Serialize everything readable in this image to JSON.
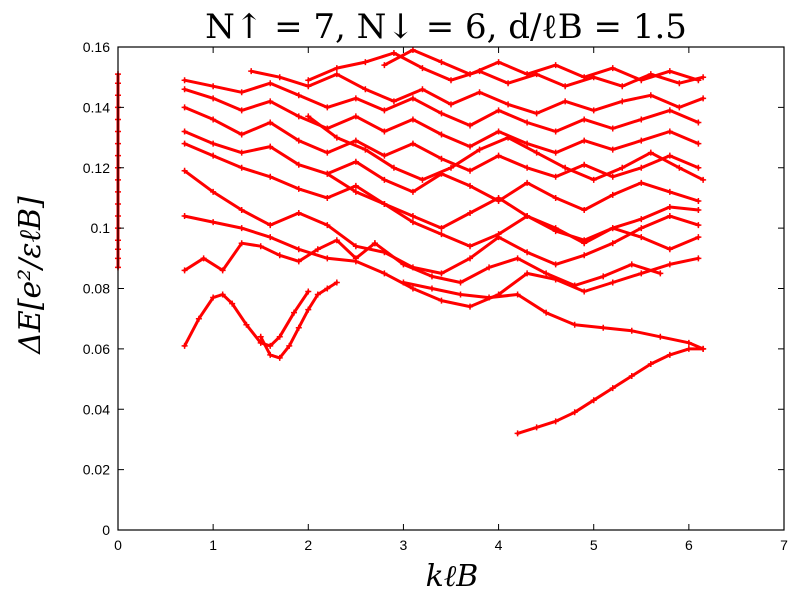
{
  "chart_data": {
    "type": "scatter",
    "title": "N↑ = 7, N↓ = 6, d/ℓB = 1.5",
    "xlabel": "kℓB",
    "ylabel": "ΔE[e²/εℓB]",
    "xlim": [
      0,
      7
    ],
    "ylim": [
      0,
      0.16
    ],
    "x_ticks": [
      "0",
      "1",
      "2",
      "3",
      "4",
      "5",
      "6",
      "7"
    ],
    "y_ticks": [
      "0",
      "0.02",
      "0.04",
      "0.06",
      "0.08",
      "0.1",
      "0.12",
      "0.14",
      "0.16"
    ],
    "grid": false,
    "color": "#ff0000",
    "series": [
      {
        "x": [
          0,
          0,
          0,
          0,
          0,
          0,
          0,
          0,
          0,
          0,
          0,
          0,
          0,
          0,
          0,
          0,
          0,
          0
        ],
        "y": [
          0.087,
          0.09,
          0.093,
          0.096,
          0.1,
          0.104,
          0.108,
          0.112,
          0.116,
          0.12,
          0.124,
          0.128,
          0.132,
          0.136,
          0.14,
          0.144,
          0.148,
          0.151
        ]
      },
      {
        "x": [
          0.7,
          0.85,
          1.0,
          1.1,
          1.2,
          1.35,
          1.5,
          1.6,
          1.7,
          1.85,
          2.0
        ],
        "y": [
          0.061,
          0.07,
          0.077,
          0.078,
          0.075,
          0.068,
          0.062,
          0.061,
          0.064,
          0.072,
          0.079
        ]
      },
      {
        "x": [
          1.5,
          1.6,
          1.7,
          1.8,
          1.9,
          2.0,
          2.1,
          2.2,
          2.3
        ],
        "y": [
          0.064,
          0.058,
          0.057,
          0.061,
          0.067,
          0.073,
          0.078,
          0.08,
          0.082
        ]
      },
      {
        "x": [
          4.2,
          4.4,
          4.6,
          4.8,
          5.0,
          5.2,
          5.4,
          5.6,
          5.8,
          6.0,
          6.15
        ],
        "y": [
          0.032,
          0.034,
          0.036,
          0.039,
          0.043,
          0.047,
          0.051,
          0.055,
          0.058,
          0.06,
          0.06
        ]
      },
      {
        "x": [
          3.0,
          3.3,
          3.6,
          3.9,
          4.2,
          4.5,
          4.8,
          5.1,
          5.4,
          5.7,
          6.0,
          6.15
        ],
        "y": [
          0.082,
          0.08,
          0.078,
          0.077,
          0.078,
          0.072,
          0.068,
          0.067,
          0.066,
          0.064,
          0.062,
          0.06
        ]
      },
      {
        "x": [
          0.7,
          0.9,
          1.1,
          1.3,
          1.5,
          1.7,
          1.9,
          2.1,
          2.3,
          2.5,
          2.7
        ],
        "y": [
          0.086,
          0.09,
          0.086,
          0.095,
          0.094,
          0.091,
          0.089,
          0.093,
          0.096,
          0.09,
          0.095
        ]
      },
      {
        "x": [
          0.7,
          1.0,
          1.3,
          1.6,
          1.9,
          2.2,
          2.5,
          2.8,
          3.1,
          3.4,
          3.7,
          4.0,
          4.3,
          4.6,
          4.9,
          5.2,
          5.5,
          5.8,
          6.1
        ],
        "y": [
          0.104,
          0.102,
          0.1,
          0.097,
          0.093,
          0.09,
          0.089,
          0.085,
          0.08,
          0.076,
          0.074,
          0.078,
          0.085,
          0.083,
          0.079,
          0.082,
          0.085,
          0.088,
          0.09
        ]
      },
      {
        "x": [
          0.7,
          1.0,
          1.3,
          1.6,
          1.9,
          2.2,
          2.5,
          2.8,
          3.1,
          3.4,
          3.7,
          4.0,
          4.3,
          4.6,
          4.9,
          5.2,
          5.5,
          5.8,
          6.1
        ],
        "y": [
          0.119,
          0.112,
          0.106,
          0.101,
          0.105,
          0.101,
          0.094,
          0.092,
          0.087,
          0.085,
          0.09,
          0.097,
          0.092,
          0.088,
          0.091,
          0.095,
          0.1,
          0.104,
          0.101
        ]
      },
      {
        "x": [
          0.7,
          1.0,
          1.3,
          1.6,
          1.9,
          2.2,
          2.5,
          2.8,
          3.1,
          3.4,
          3.7,
          4.0,
          4.3,
          4.6,
          4.9,
          5.2,
          5.5,
          5.8,
          6.1
        ],
        "y": [
          0.128,
          0.124,
          0.12,
          0.117,
          0.113,
          0.11,
          0.114,
          0.108,
          0.104,
          0.1,
          0.105,
          0.11,
          0.104,
          0.099,
          0.096,
          0.1,
          0.103,
          0.107,
          0.106
        ]
      },
      {
        "x": [
          0.7,
          1.0,
          1.3,
          1.6,
          1.9,
          2.2,
          2.5,
          2.8,
          3.1,
          3.4,
          3.7,
          4.0,
          4.3,
          4.6,
          4.9,
          5.2,
          5.5,
          5.8,
          6.1
        ],
        "y": [
          0.132,
          0.128,
          0.125,
          0.127,
          0.121,
          0.118,
          0.122,
          0.116,
          0.112,
          0.118,
          0.114,
          0.109,
          0.115,
          0.11,
          0.106,
          0.111,
          0.115,
          0.112,
          0.109
        ]
      },
      {
        "x": [
          0.7,
          1.0,
          1.3,
          1.6,
          1.9,
          2.2,
          2.5,
          2.8,
          3.1,
          3.4,
          3.7,
          4.0,
          4.3,
          4.6,
          4.9,
          5.2,
          5.5,
          5.8,
          6.1
        ],
        "y": [
          0.14,
          0.136,
          0.131,
          0.135,
          0.129,
          0.125,
          0.129,
          0.124,
          0.128,
          0.123,
          0.119,
          0.124,
          0.12,
          0.117,
          0.121,
          0.117,
          0.12,
          0.124,
          0.12
        ]
      },
      {
        "x": [
          0.7,
          1.0,
          1.3,
          1.6,
          1.9,
          2.2,
          2.5,
          2.8,
          3.1,
          3.4,
          3.7,
          4.0,
          4.3,
          4.6,
          4.9,
          5.2,
          5.5,
          5.8,
          6.1
        ],
        "y": [
          0.146,
          0.143,
          0.139,
          0.142,
          0.137,
          0.133,
          0.137,
          0.132,
          0.136,
          0.131,
          0.127,
          0.132,
          0.128,
          0.125,
          0.129,
          0.126,
          0.129,
          0.132,
          0.128
        ]
      },
      {
        "x": [
          0.7,
          1.0,
          1.3,
          1.6,
          1.9,
          2.2,
          2.5,
          2.8,
          3.1,
          3.4,
          3.7,
          4.0,
          4.3,
          4.6,
          4.9,
          5.2,
          5.5,
          5.8,
          6.1
        ],
        "y": [
          0.149,
          0.147,
          0.145,
          0.148,
          0.144,
          0.14,
          0.143,
          0.139,
          0.143,
          0.138,
          0.134,
          0.139,
          0.135,
          0.132,
          0.136,
          0.133,
          0.136,
          0.139,
          0.135
        ]
      },
      {
        "x": [
          1.4,
          1.7,
          2.0,
          2.3,
          2.6,
          2.9,
          3.2,
          3.5,
          3.8,
          4.1,
          4.4,
          4.7,
          5.0,
          5.3,
          5.6,
          5.9,
          6.15
        ],
        "y": [
          0.152,
          0.15,
          0.147,
          0.151,
          0.146,
          0.142,
          0.146,
          0.141,
          0.145,
          0.141,
          0.138,
          0.142,
          0.139,
          0.142,
          0.144,
          0.14,
          0.143
        ]
      },
      {
        "x": [
          2.0,
          2.3,
          2.6,
          2.9,
          3.2,
          3.5,
          3.8,
          4.1,
          4.4,
          4.7,
          5.0,
          5.3,
          5.6,
          5.9,
          6.15
        ],
        "y": [
          0.149,
          0.153,
          0.155,
          0.158,
          0.153,
          0.149,
          0.152,
          0.148,
          0.151,
          0.147,
          0.15,
          0.147,
          0.151,
          0.148,
          0.15
        ]
      },
      {
        "x": [
          2.8,
          3.1,
          3.4,
          3.7,
          4.0,
          4.3,
          4.6,
          4.9,
          5.2,
          5.5,
          5.8,
          6.1
        ],
        "y": [
          0.154,
          0.159,
          0.155,
          0.151,
          0.155,
          0.151,
          0.154,
          0.15,
          0.153,
          0.149,
          0.152,
          0.149
        ]
      },
      {
        "x": [
          2.0,
          2.3,
          2.6,
          2.9,
          3.2,
          3.5,
          3.8,
          4.1,
          4.4,
          4.7,
          5.0,
          5.3,
          5.6,
          5.9,
          6.15
        ],
        "y": [
          0.137,
          0.13,
          0.126,
          0.12,
          0.116,
          0.12,
          0.126,
          0.13,
          0.125,
          0.12,
          0.116,
          0.12,
          0.125,
          0.12,
          0.116
        ]
      },
      {
        "x": [
          2.2,
          2.5,
          2.8,
          3.1,
          3.4,
          3.7,
          4.0,
          4.3,
          4.6,
          4.9,
          5.2,
          5.5,
          5.8,
          6.1
        ],
        "y": [
          0.118,
          0.112,
          0.108,
          0.102,
          0.098,
          0.094,
          0.098,
          0.104,
          0.1,
          0.095,
          0.1,
          0.097,
          0.093,
          0.097
        ]
      },
      {
        "x": [
          2.7,
          3.0,
          3.3,
          3.6,
          3.9,
          4.2,
          4.5,
          4.8,
          5.1,
          5.4,
          5.7
        ],
        "y": [
          0.095,
          0.088,
          0.084,
          0.082,
          0.087,
          0.09,
          0.085,
          0.081,
          0.084,
          0.088,
          0.085
        ]
      }
    ]
  }
}
